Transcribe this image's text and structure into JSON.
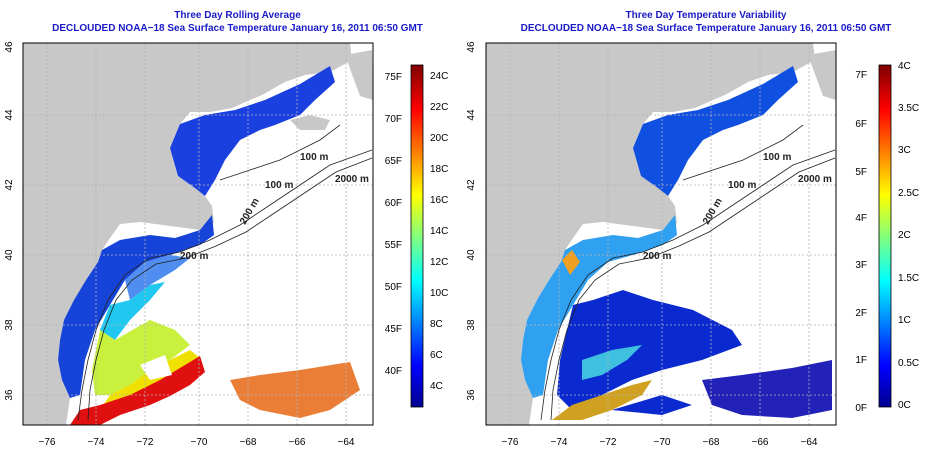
{
  "panels": [
    {
      "title": "Three Day Rolling Average",
      "subtitle": "DECLOUDED NOAA−18 Sea Surface Temperature January 16, 2011 06:50 GMT",
      "x_ticks": [
        "−76",
        "−74",
        "−72",
        "−70",
        "−68",
        "−66",
        "−64"
      ],
      "y_ticks": [
        "36",
        "38",
        "40",
        "42",
        "44",
        "46"
      ],
      "contour_labels": [
        "100 m",
        "100 m",
        "200 m",
        "2000 m",
        "200 m"
      ],
      "colorbar_left_labels": [
        "75F",
        "70F",
        "65F",
        "60F",
        "55F",
        "50F",
        "45F",
        "40F"
      ],
      "colorbar_right_labels": [
        "24C",
        "22C",
        "20C",
        "18C",
        "16C",
        "14C",
        "12C",
        "10C",
        "8C",
        "6C",
        "4C"
      ]
    },
    {
      "title": "Three Day Temperature Variability",
      "subtitle": "DECLOUDED NOAA−18 Sea Surface Temperature January 16, 2011 06:50 GMT",
      "x_ticks": [
        "−76",
        "−74",
        "−72",
        "−70",
        "−68",
        "−66",
        "−64"
      ],
      "y_ticks": [
        "36",
        "38",
        "40",
        "42",
        "44",
        "46"
      ],
      "contour_labels": [
        "100 m",
        "100 m",
        "200 m",
        "2000 m",
        "200 m"
      ],
      "colorbar_left_labels": [
        "7F",
        "6F",
        "5F",
        "4F",
        "3F",
        "2F",
        "1F",
        "0F"
      ],
      "colorbar_right_labels": [
        "4C",
        "3.5C",
        "3C",
        "2.5C",
        "2C",
        "1.5C",
        "1C",
        "0.5C",
        "0C"
      ]
    }
  ],
  "colors": {
    "title": "#1a1ac8",
    "land": "#c8c8c8",
    "ocean_nodata": "#ffffff",
    "grid": "#b4b4b4",
    "contour": "#222222"
  },
  "map_extent": {
    "lon_min": -77.5,
    "lon_max": -63.0,
    "lat_min": 35.0,
    "lat_max": 46.0
  }
}
